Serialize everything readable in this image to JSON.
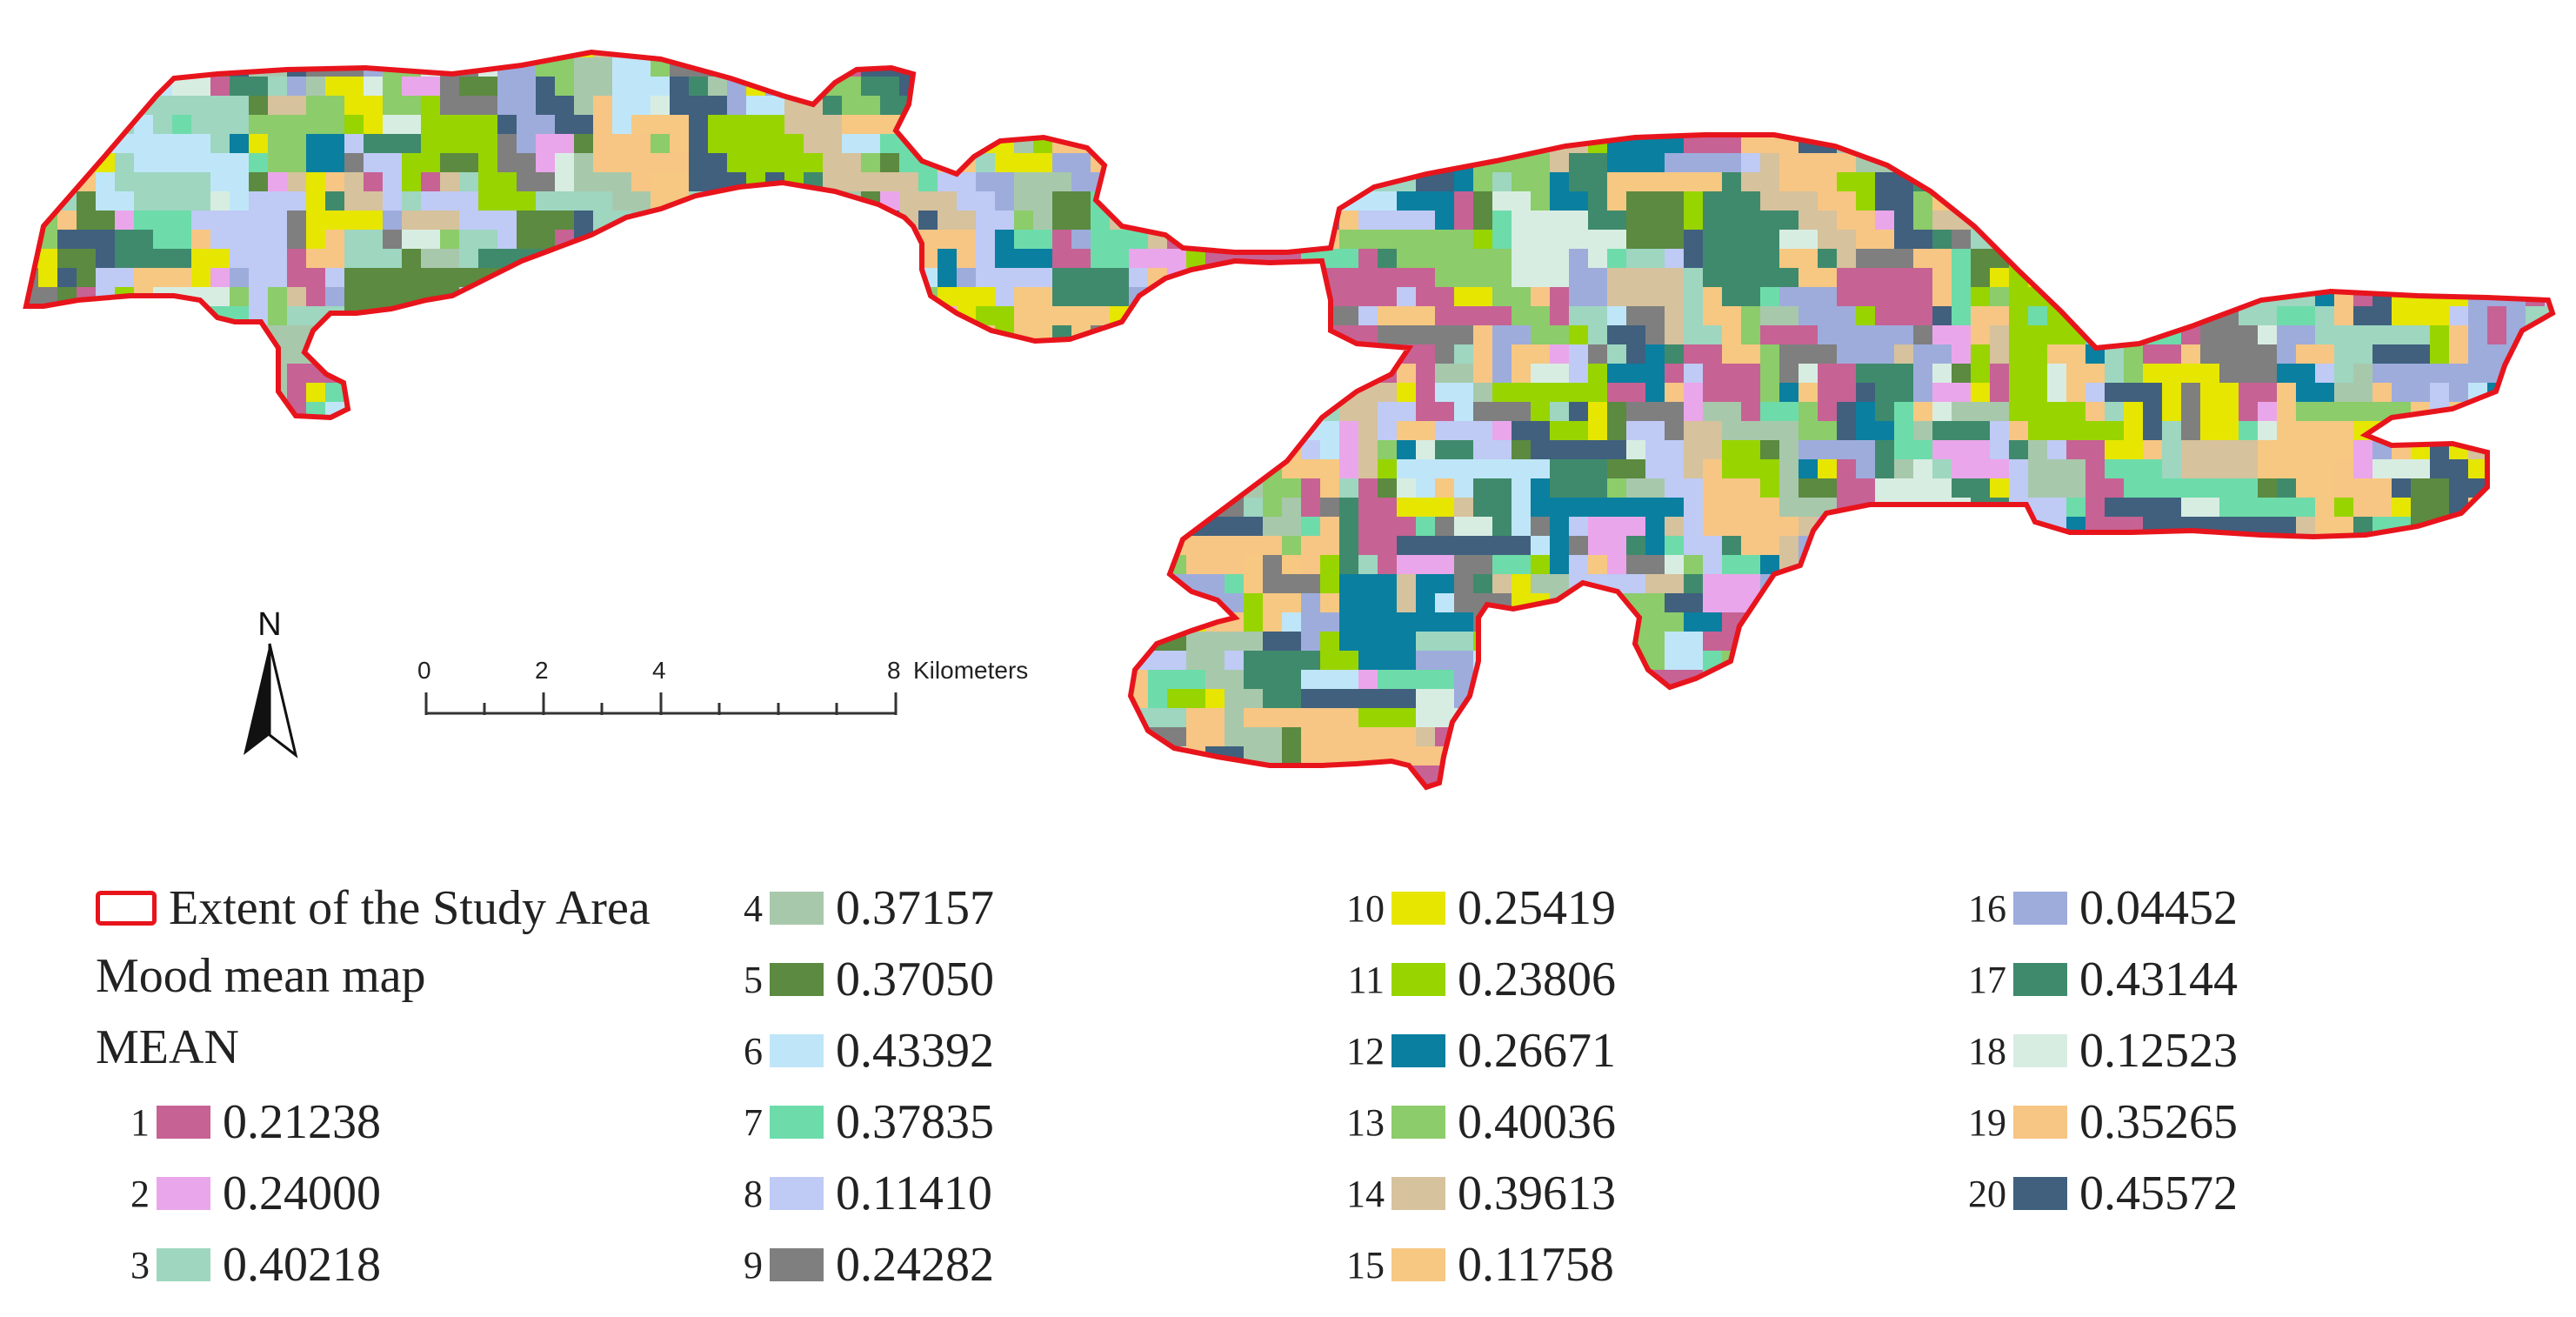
{
  "north": {
    "label": "N"
  },
  "scale_bar": {
    "ticks": [
      "0",
      "2",
      "4",
      "8"
    ],
    "unit": "Kilometers"
  },
  "legend": {
    "extent_label": "Extent of the Study Area",
    "map_title": "Mood mean map",
    "field_label": "MEAN",
    "boundary_color": "#e8141c",
    "classes": [
      {
        "id": "1",
        "value": "0.21238",
        "color": "#c76294"
      },
      {
        "id": "2",
        "value": "0.24000",
        "color": "#eaa6ea"
      },
      {
        "id": "3",
        "value": "0.40218",
        "color": "#9ed6c0"
      },
      {
        "id": "4",
        "value": "0.37157",
        "color": "#a8c8ac"
      },
      {
        "id": "5",
        "value": "0.37050",
        "color": "#5b8a40"
      },
      {
        "id": "6",
        "value": "0.43392",
        "color": "#bfe6f8"
      },
      {
        "id": "7",
        "value": "0.37835",
        "color": "#6ddcaa"
      },
      {
        "id": "8",
        "value": "0.11410",
        "color": "#bfcaf5"
      },
      {
        "id": "9",
        "value": "0.24282",
        "color": "#7f7f7f"
      },
      {
        "id": "10",
        "value": "0.25419",
        "color": "#e6e600"
      },
      {
        "id": "11",
        "value": "0.23806",
        "color": "#98d400"
      },
      {
        "id": "12",
        "value": "0.26671",
        "color": "#0a7fa0"
      },
      {
        "id": "13",
        "value": "0.40036",
        "color": "#8ccc6a"
      },
      {
        "id": "14",
        "value": "0.39613",
        "color": "#d6c29c"
      },
      {
        "id": "15",
        "value": "0.11758",
        "color": "#f6c882"
      },
      {
        "id": "16",
        "value": "0.04452",
        "color": "#9eacdc"
      },
      {
        "id": "17",
        "value": "0.43144",
        "color": "#3f8a6c"
      },
      {
        "id": "18",
        "value": "0.12523",
        "color": "#d8ede2"
      },
      {
        "id": "19",
        "value": "0.35265",
        "color": "#f7c684"
      },
      {
        "id": "20",
        "value": "0.45572",
        "color": "#40607e"
      }
    ]
  }
}
